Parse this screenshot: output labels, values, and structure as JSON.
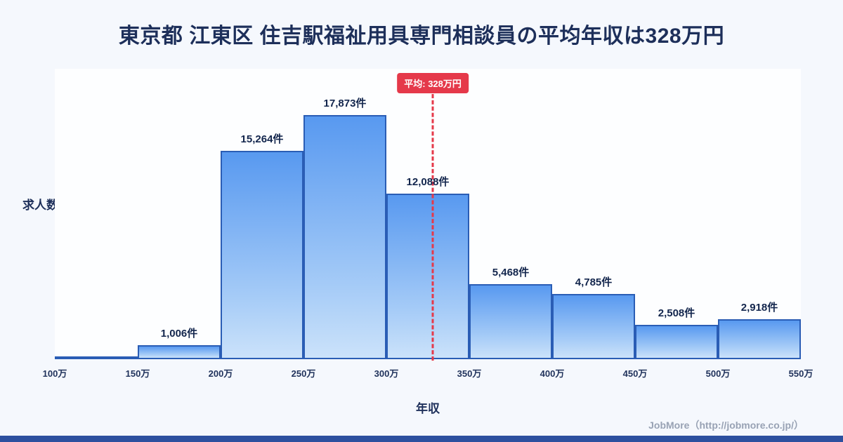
{
  "title": "東京都 江東区 住吉駅福祉用具専門相談員の平均年収は328万円",
  "footer": {
    "credit": "JobMore（http://jobmore.co.jp/）"
  },
  "chart_data": {
    "type": "bar",
    "title": "東京都 江東区 住吉駅福祉用具専門相談員の平均年収は328万円",
    "ylabel": "求人数",
    "xlabel": "年収",
    "x_ticks": [
      "100万",
      "150万",
      "200万",
      "250万",
      "300万",
      "350万",
      "400万",
      "450万",
      "500万",
      "550万"
    ],
    "x_range": [
      100,
      550
    ],
    "ylim": [
      0,
      19500
    ],
    "values": [
      100,
      1006,
      15264,
      17873,
      12088,
      5468,
      4785,
      2508,
      2918
    ],
    "bar_labels": [
      "",
      "1,006件",
      "15,264件",
      "17,873件",
      "12,088件",
      "5,468件",
      "4,785件",
      "2,508件",
      "2,918件"
    ],
    "average": {
      "value": 328,
      "label": "平均: 328万円"
    },
    "colors": {
      "bar_fill_top": "#5899f0",
      "bar_fill_bottom": "#cbe2fa",
      "bar_border": "#2a5db5",
      "average_line": "#e5394a",
      "title_text": "#1d2f5a",
      "footer_text": "#98a2b4",
      "bottom_strip": "#2d509f",
      "background": "#f5f8fd"
    }
  }
}
